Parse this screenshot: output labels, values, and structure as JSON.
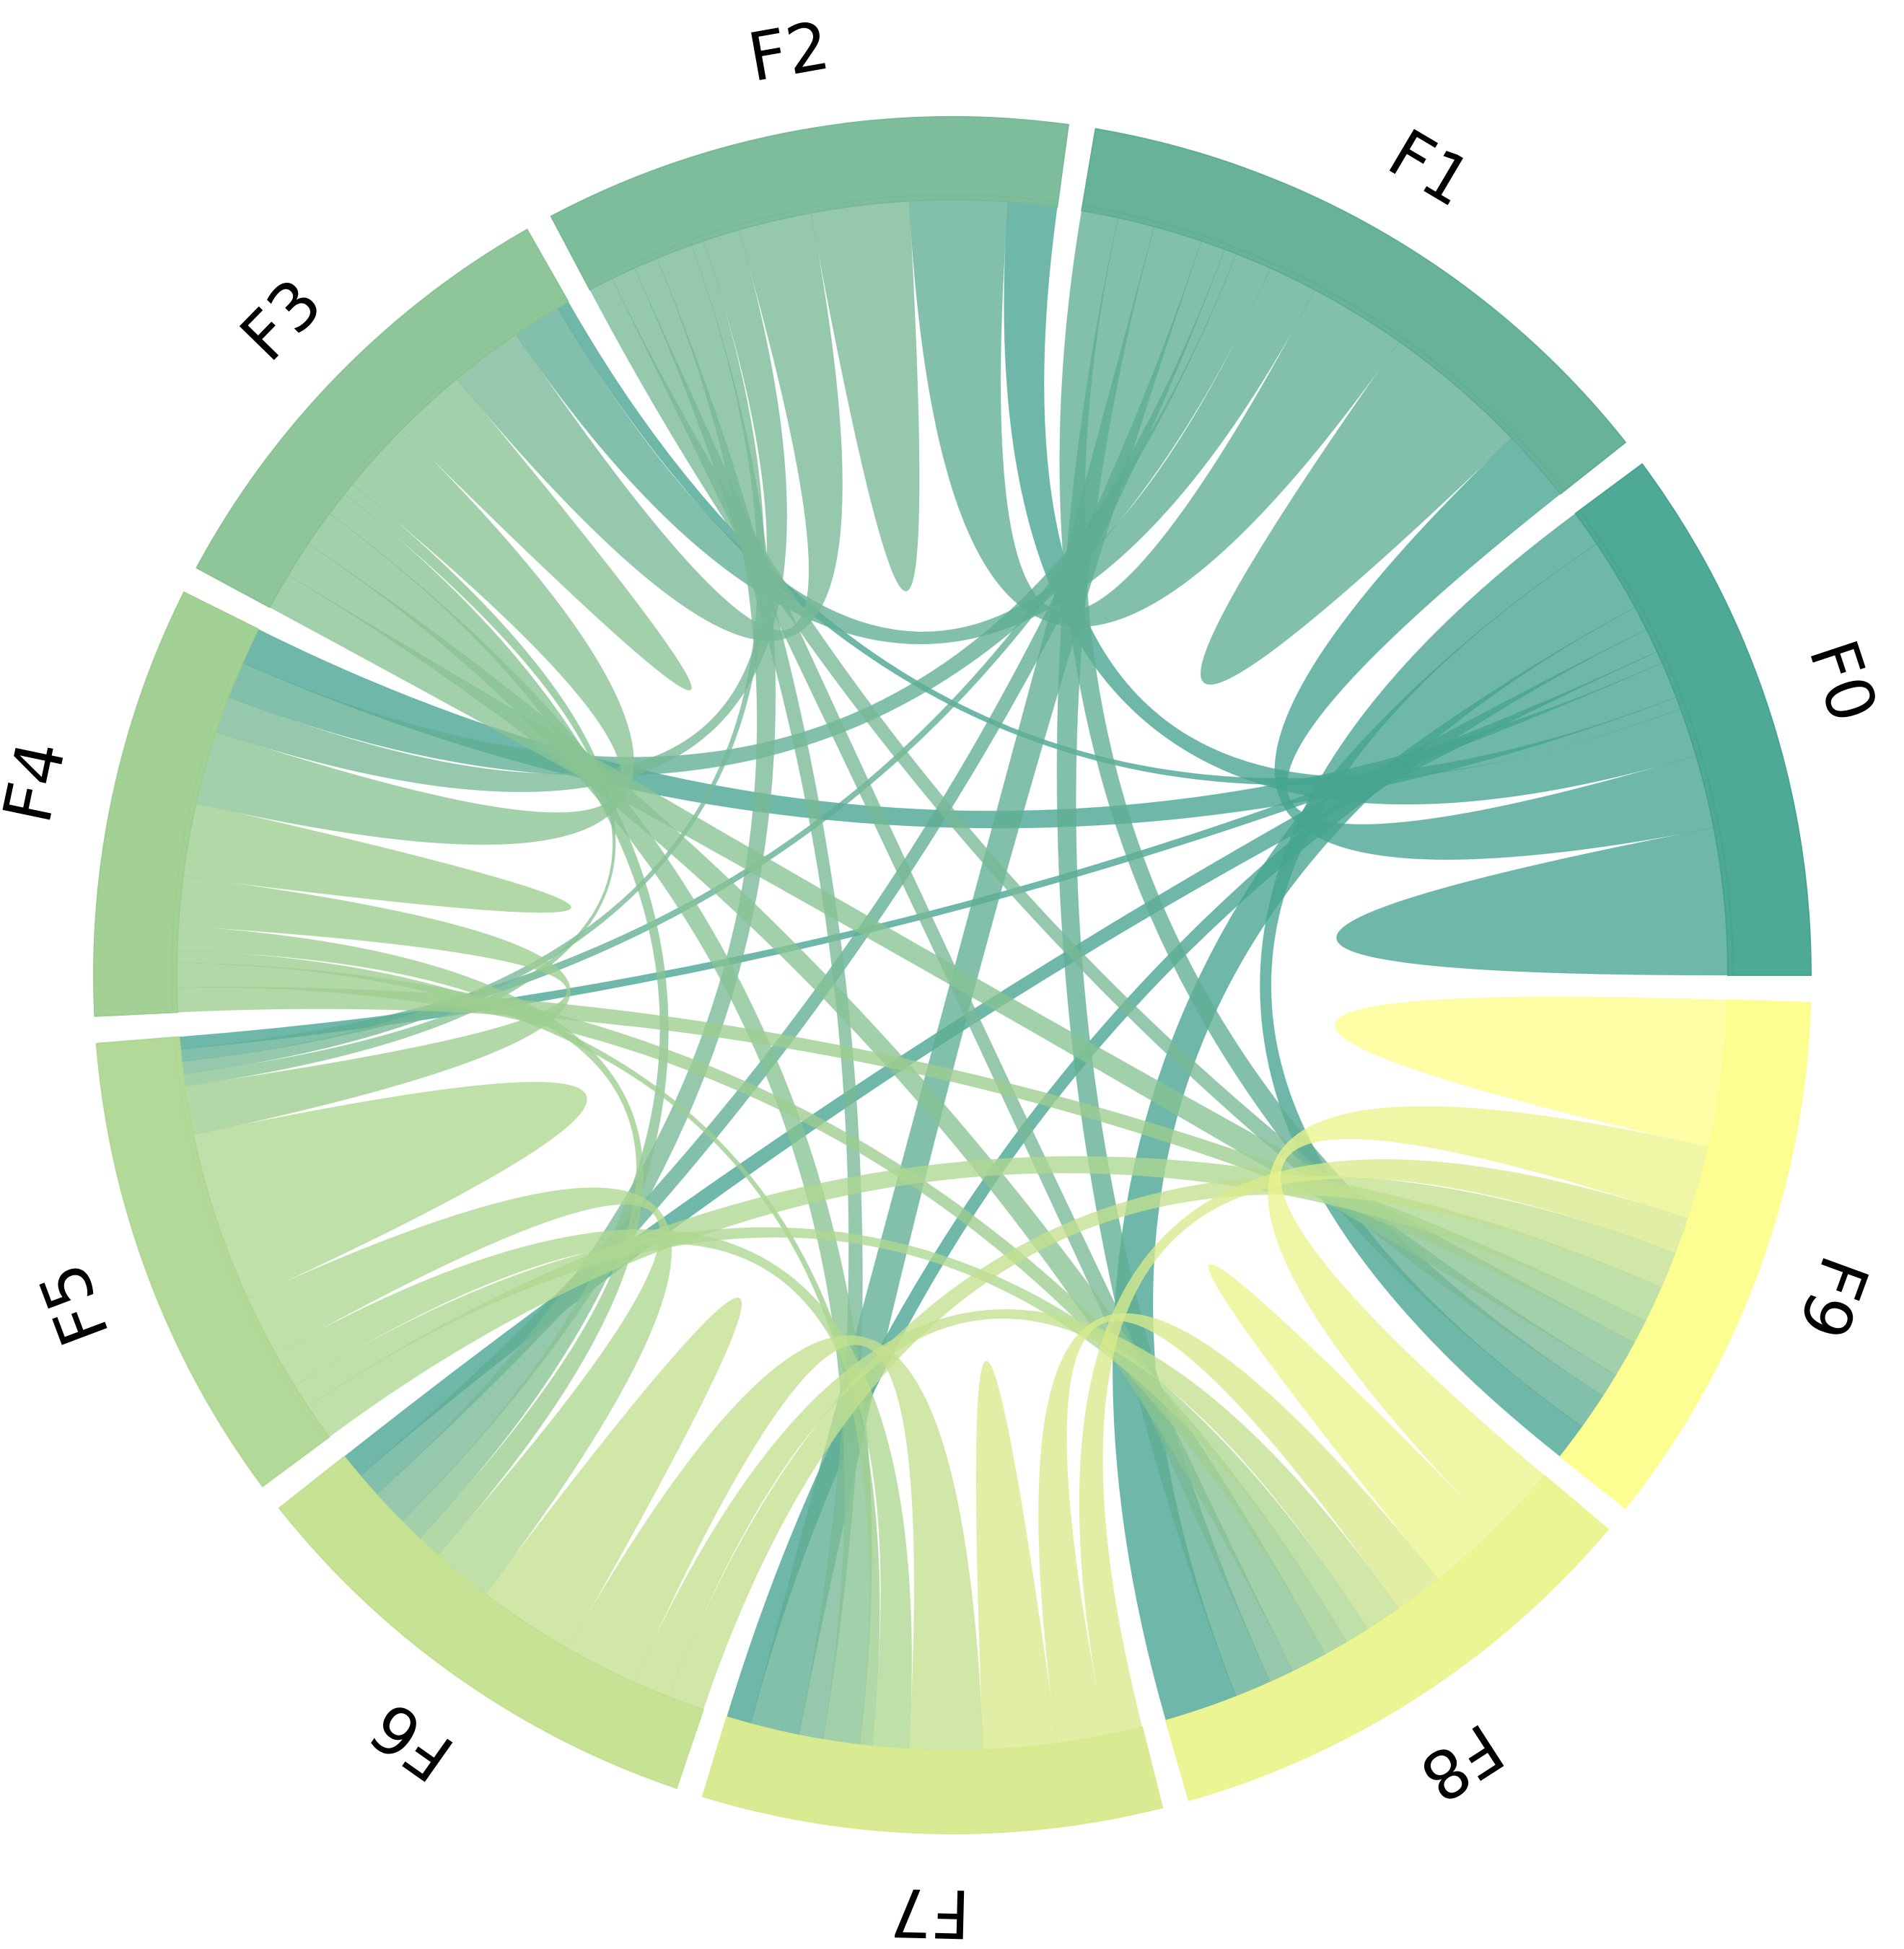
{
  "chart_data": {
    "type": "chord",
    "title": "",
    "categories": [
      "F0",
      "F1",
      "F2",
      "F3",
      "F4",
      "F5",
      "F6",
      "F7",
      "F8",
      "F9"
    ],
    "colors": [
      "#46a491",
      "#5fae94",
      "#77b996",
      "#88c393",
      "#9dcd8f",
      "#aed791",
      "#c3e08f",
      "#d7ea8c",
      "#ebf48d",
      "#fdfe8c"
    ],
    "matrix": [
      [
        12,
        6,
        4,
        1,
        3,
        1,
        2,
        2,
        6,
        3
      ],
      [
        6,
        12,
        8,
        4,
        3,
        1,
        2,
        4,
        3,
        3
      ],
      [
        4,
        8,
        8,
        6,
        3,
        1,
        3,
        2,
        2,
        2
      ],
      [
        1,
        4,
        6,
        6,
        6,
        1,
        2,
        3,
        3,
        3
      ],
      [
        3,
        3,
        3,
        6,
        6,
        4,
        2,
        1,
        2,
        2
      ],
      [
        1,
        1,
        1,
        1,
        4,
        14,
        5,
        3,
        2,
        3
      ],
      [
        2,
        2,
        3,
        2,
        2,
        5,
        8,
        6,
        3,
        3
      ],
      [
        2,
        4,
        2,
        3,
        1,
        3,
        6,
        6,
        4,
        3
      ],
      [
        6,
        3,
        2,
        3,
        2,
        2,
        3,
        4,
        6,
        6
      ],
      [
        3,
        3,
        2,
        3,
        2,
        3,
        3,
        3,
        6,
        12
      ]
    ]
  }
}
